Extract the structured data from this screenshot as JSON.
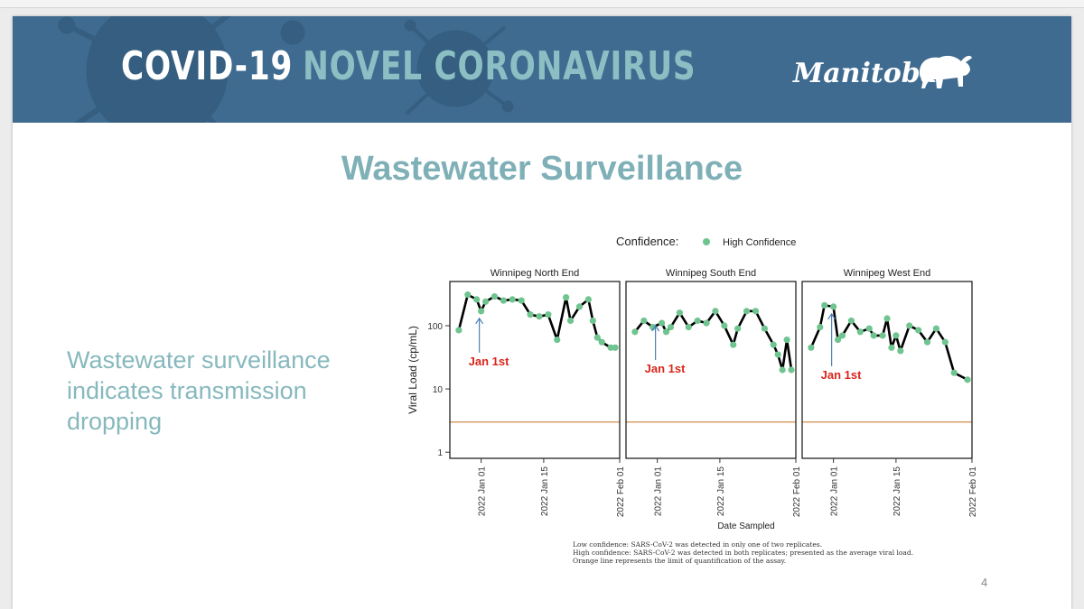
{
  "banner": {
    "title_part1": "COVID-19",
    "title_part2": "NOVEL CORONAVIRUS",
    "logo_text": "Manitoba"
  },
  "slide": {
    "title": "Wastewater Surveillance",
    "side_text": "Wastewater surveillance indicates transmission dropping",
    "page_number": "4"
  },
  "chart_data": {
    "type": "line",
    "legend": {
      "title": "Confidence:",
      "entries": [
        "High Confidence"
      ],
      "placement": "top"
    },
    "xlabel": "Date Sampled",
    "ylabel": "Viral Load (cp/mL)",
    "y_scale": "log",
    "ylim": [
      0.8,
      500
    ],
    "y_ticks": [
      1,
      10,
      100
    ],
    "y_tick_labels": [
      "1",
      "10",
      "100"
    ],
    "x_ticks": [
      "2022-01-01",
      "2022-01-15",
      "2022-02-01"
    ],
    "x_tick_labels": [
      "2022 Jan 01",
      "2022 Jan 15",
      "2022 Feb 01"
    ],
    "xlim": [
      "2021-12-25",
      "2022-02-01"
    ],
    "loq_line": 3,
    "colors": {
      "line": "#000000",
      "point": "#6fc48f",
      "loq": "#d9a066",
      "annotation": "#d9261c",
      "arrow": "#4a7fb8"
    },
    "annotation_label": "Jan 1st",
    "facets": [
      {
        "name": "Winnipeg North End",
        "x": [
          "2021-12-27",
          "2021-12-29",
          "2021-12-31",
          "2022-01-01",
          "2022-01-02",
          "2022-01-04",
          "2022-01-06",
          "2022-01-08",
          "2022-01-10",
          "2022-01-12",
          "2022-01-14",
          "2022-01-16",
          "2022-01-18",
          "2022-01-20",
          "2022-01-21",
          "2022-01-23",
          "2022-01-25",
          "2022-01-26",
          "2022-01-27",
          "2022-01-28",
          "2022-01-30",
          "2022-01-31"
        ],
        "y": [
          85,
          310,
          260,
          170,
          240,
          290,
          250,
          260,
          250,
          150,
          140,
          150,
          60,
          280,
          120,
          200,
          260,
          120,
          65,
          55,
          45,
          45
        ],
        "annotation_date": "2022-01-01",
        "annotation_label_pos": "below"
      },
      {
        "name": "Winnipeg South End",
        "x": [
          "2021-12-27",
          "2021-12-29",
          "2021-12-31",
          "2022-01-02",
          "2022-01-03",
          "2022-01-04",
          "2022-01-06",
          "2022-01-08",
          "2022-01-10",
          "2022-01-12",
          "2022-01-14",
          "2022-01-16",
          "2022-01-18",
          "2022-01-19",
          "2022-01-21",
          "2022-01-23",
          "2022-01-25",
          "2022-01-27",
          "2022-01-28",
          "2022-01-29",
          "2022-01-30",
          "2022-01-31"
        ],
        "y": [
          80,
          120,
          95,
          110,
          80,
          95,
          160,
          95,
          120,
          110,
          170,
          100,
          50,
          90,
          170,
          170,
          90,
          50,
          35,
          20,
          60,
          20
        ],
        "annotation_date": "2022-01-01",
        "annotation_label_pos": "below"
      },
      {
        "name": "Winnipeg West End",
        "x": [
          "2021-12-27",
          "2021-12-29",
          "2021-12-30",
          "2022-01-01",
          "2022-01-02",
          "2022-01-03",
          "2022-01-05",
          "2022-01-07",
          "2022-01-09",
          "2022-01-10",
          "2022-01-12",
          "2022-01-13",
          "2022-01-14",
          "2022-01-15",
          "2022-01-16",
          "2022-01-18",
          "2022-01-20",
          "2022-01-22",
          "2022-01-24",
          "2022-01-26",
          "2022-01-28",
          "2022-01-31"
        ],
        "y": [
          45,
          95,
          210,
          200,
          60,
          70,
          120,
          80,
          90,
          70,
          70,
          130,
          45,
          70,
          40,
          100,
          85,
          55,
          90,
          55,
          18,
          14
        ],
        "annotation_date": "2022-01-01",
        "annotation_label_pos": "far-below"
      }
    ],
    "footnotes": [
      "Low confidence: SARS-CoV-2 was detected in only one of two replicates.",
      "High confidence: SARS-CoV-2 was detected in both replicates; presented as the average viral load.",
      "Orange line represents the limit of quantification of the assay."
    ]
  }
}
